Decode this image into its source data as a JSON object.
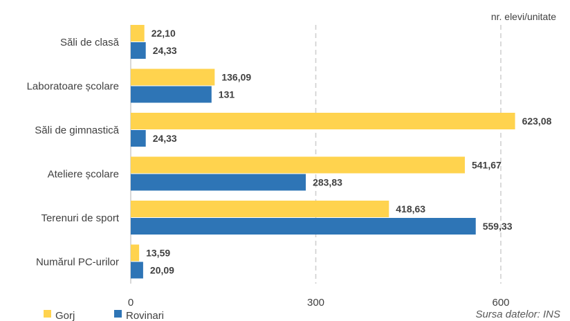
{
  "chart_data": {
    "type": "bar",
    "orientation": "horizontal",
    "categories": [
      "Săli de clasă",
      "Laboratoare școlare",
      "Săli de gimnastică",
      "Ateliere școlare",
      "Terenuri de sport",
      "Numărul PC-urilor"
    ],
    "series": [
      {
        "name": "Gorj",
        "color": "#FFD34E",
        "values": [
          22.1,
          136.09,
          623.08,
          541.67,
          418.63,
          13.59
        ],
        "labels": [
          "22,10",
          "136,09",
          "623,08",
          "541,67",
          "418,63",
          "13,59"
        ]
      },
      {
        "name": "Rovinari",
        "color": "#2E75B6",
        "values": [
          24.33,
          131,
          24.33,
          283.83,
          559.33,
          20.09
        ],
        "labels": [
          "24,33",
          "131",
          "24,33",
          "283,83",
          "559,33",
          "20,09"
        ]
      }
    ],
    "xlim": [
      0,
      600
    ],
    "xticks": [
      0,
      300,
      600
    ],
    "xtick_labels": [
      "0",
      "300",
      "600"
    ],
    "unit_label": "nr. elevi/unitate",
    "grid": "vertical-dashed",
    "legend_position": "bottom-left",
    "source": "Sursa datelor: INS"
  }
}
